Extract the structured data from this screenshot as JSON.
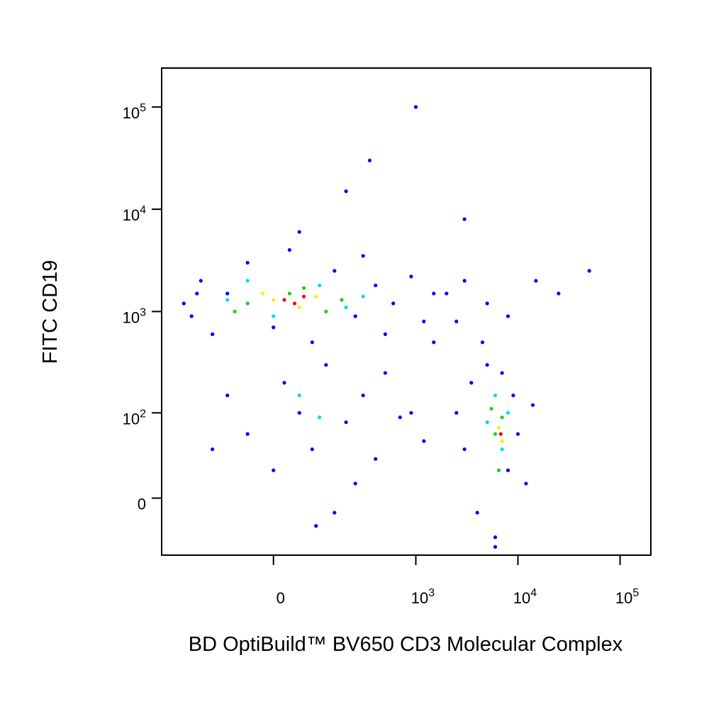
{
  "chart_data": {
    "type": "scatter",
    "x_label": "BD OptiBuild™ BV650 CD3 Molecular Complex",
    "y_label": "FITC CD19",
    "xscale": "asinh",
    "yscale": "asinh",
    "xlim": [
      -500,
      200000
    ],
    "ylim": [
      -50,
      240000
    ],
    "xticks": [
      0,
      {
        "value": 1000,
        "label": "10",
        "exponent": "3"
      },
      {
        "value": 10000,
        "label": "10",
        "exponent": "4"
      },
      {
        "value": 100000,
        "label": "10",
        "exponent": "5"
      }
    ],
    "yticks": [
      0,
      {
        "value": 100,
        "label": "10",
        "exponent": "2"
      },
      {
        "value": 1000,
        "label": "10",
        "exponent": "3"
      },
      {
        "value": 10000,
        "label": "10",
        "exponent": "4"
      },
      {
        "value": 100000,
        "label": "10",
        "exponent": "5"
      }
    ],
    "series": [
      {
        "color": "#0000ff",
        "x": [
          -300,
          -250,
          -200,
          -150,
          -100,
          -50,
          0,
          30,
          80,
          150,
          250,
          400,
          600,
          900,
          1500,
          -220,
          50,
          300,
          500,
          1200,
          -100,
          -50,
          0,
          20,
          50,
          80,
          120,
          200,
          300,
          400,
          500,
          700,
          -150,
          150,
          250,
          90,
          2500,
          3000,
          3500,
          4000,
          5000,
          6000,
          7000,
          8000,
          9000,
          10000,
          12000,
          14000,
          4500,
          6000,
          1500,
          2000,
          2500,
          3000,
          5000,
          8000,
          15000,
          25000,
          900,
          1200,
          1000,
          350,
          200,
          50000,
          3000
        ],
        "y": [
          1200,
          900,
          2000,
          600,
          1500,
          3000,
          700,
          4000,
          500,
          2500,
          900,
          1800,
          1200,
          2200,
          1500,
          1500,
          6000,
          3500,
          600,
          800,
          150,
          60,
          20,
          200,
          100,
          40,
          300,
          80,
          150,
          30,
          250,
          90,
          40,
          -10,
          10,
          -20,
          100,
          40,
          200,
          -10,
          300,
          -30,
          250,
          20,
          150,
          60,
          10,
          120,
          500,
          -40,
          500,
          1500,
          800,
          2000,
          1200,
          900,
          2000,
          1500,
          100,
          50,
          100000,
          30000,
          15000,
          2500,
          8000
        ]
      },
      {
        "color": "#00d8ff",
        "x": [
          -100,
          0,
          100,
          200,
          -50,
          300,
          100,
          50,
          5000,
          7000,
          6000,
          8000
        ],
        "y": [
          1300,
          900,
          1800,
          1100,
          2000,
          1400,
          90,
          150,
          80,
          40,
          150,
          100
        ]
      },
      {
        "color": "#22cc22",
        "x": [
          -50,
          30,
          120,
          60,
          -80,
          180,
          6000,
          7000,
          6500,
          5500
        ],
        "y": [
          1200,
          1500,
          1000,
          1700,
          1000,
          1300,
          60,
          90,
          20,
          110
        ]
      },
      {
        "color": "#ffee00",
        "x": [
          0,
          50,
          90,
          -20,
          6500,
          7000
        ],
        "y": [
          1300,
          1100,
          1400,
          1500,
          70,
          50
        ]
      },
      {
        "color": "#ff0000",
        "x": [
          20,
          40,
          60,
          6800
        ],
        "y": [
          1300,
          1200,
          1400,
          60
        ]
      }
    ]
  }
}
